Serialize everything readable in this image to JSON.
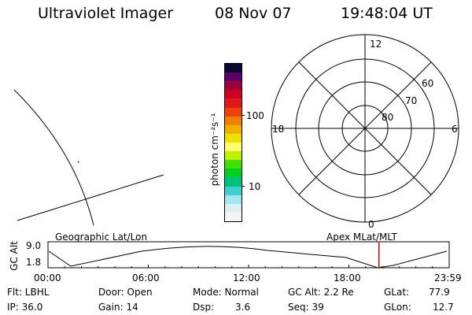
{
  "header": {
    "instrument": "Ultraviolet Imager",
    "date": "08 Nov 07",
    "time": "19:48:04 UT"
  },
  "colorbar": {
    "label": "photon cm⁻²s⁻¹",
    "ticks": [
      "100",
      "10"
    ],
    "colors": [
      "#0a0a30",
      "#5a0068",
      "#9a0040",
      "#d00020",
      "#e01818",
      "#f04010",
      "#f08000",
      "#f0b000",
      "#f0e000",
      "#ffff70",
      "#c0f000",
      "#40e000",
      "#00d020",
      "#00c080",
      "#40d0d0",
      "#a0e8f0",
      "#e0f0f0",
      "#f4f4f4"
    ]
  },
  "polar_plot": {
    "mlt_labels": {
      "top": "12",
      "left": "18",
      "right": "6",
      "bottom": "0"
    },
    "lat_labels": [
      "60",
      "70",
      "80"
    ]
  },
  "map_labels": {
    "left": "Geographic Lat/Lon",
    "right": "Apex MLat/MLT"
  },
  "altitude_strip": {
    "axis_label": "GC Alt",
    "y_ticks": [
      "9.0",
      "1.8"
    ],
    "x_ticks": [
      "00:00",
      "06:00",
      "12:00",
      "18:00",
      "23:59"
    ],
    "current_time_marker_hours": 19.8,
    "marker_color": "#e00000"
  },
  "info": {
    "flt": "Flt: LBHL",
    "ip": "IP: 36.0",
    "door": "Door: Open",
    "gain": "Gain: 14",
    "mode": "Mode: Normal",
    "dsp_label": "Dsp:",
    "dsp_value": "3.6",
    "gc_alt": "GC Alt: 2.2 Re",
    "seq": "Seq: 39",
    "glat_label": "GLat:",
    "glat_value": "77.9",
    "glon_label": "GLon:",
    "glon_value": "12.7"
  }
}
